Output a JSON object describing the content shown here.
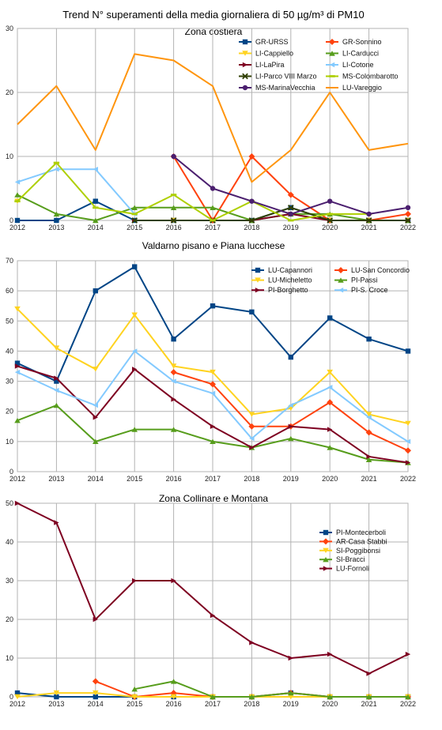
{
  "page": {
    "title": "Trend N° superamenti della media giornaliera di 50 µg/m³ di PM10"
  },
  "chart_data": [
    {
      "type": "line",
      "title": "Zona costiera",
      "xlabel": "",
      "ylabel": "",
      "categories": [
        "2012",
        "2013",
        "2014",
        "2015",
        "2016",
        "2017",
        "2018",
        "2019",
        "2020",
        "2021",
        "2022"
      ],
      "ylim": [
        0,
        30
      ],
      "yticks": [
        0,
        10,
        20,
        30
      ],
      "grid": true,
      "legend_placement": "top-right",
      "legend_columns": 2,
      "series": [
        {
          "name": "GR-URSS",
          "color": "#004586",
          "marker": "square",
          "values": [
            0,
            0,
            3,
            0,
            0,
            0,
            0,
            2,
            0,
            0,
            0
          ]
        },
        {
          "name": "GR-Sonnino",
          "color": "#ff420e",
          "marker": "diamond",
          "values": [
            null,
            null,
            null,
            null,
            10,
            0,
            10,
            4,
            0,
            0,
            1
          ]
        },
        {
          "name": "LI-Cappiello",
          "color": "#ffd320",
          "marker": "triangle-down",
          "values": [
            3,
            null,
            null,
            null,
            0,
            null,
            null,
            null,
            0,
            0,
            0
          ]
        },
        {
          "name": "LI-Carducci",
          "color": "#579d1c",
          "marker": "triangle",
          "values": [
            4,
            1,
            0,
            2,
            2,
            2,
            0,
            1,
            1,
            0,
            0
          ]
        },
        {
          "name": "LI-LaPira",
          "color": "#7e0021",
          "marker": "arrow",
          "values": [
            null,
            null,
            null,
            0,
            0,
            0,
            0,
            1,
            0,
            0,
            0
          ]
        },
        {
          "name": "LI-Cotone",
          "color": "#83caff",
          "marker": "arrow-left",
          "values": [
            6,
            8,
            8,
            1,
            null,
            null,
            null,
            null,
            null,
            null,
            null
          ]
        },
        {
          "name": "LI-Parco VIII Marzo",
          "color": "#314004",
          "marker": "x",
          "values": [
            null,
            null,
            null,
            0,
            0,
            0,
            0,
            2,
            0,
            0,
            0
          ]
        },
        {
          "name": "MS-Colombarotto",
          "color": "#aecf00",
          "marker": "hbar",
          "values": [
            3,
            9,
            2,
            1,
            4,
            0,
            3,
            0,
            1,
            1,
            null
          ]
        },
        {
          "name": "MS-MarinaVecchia",
          "color": "#4b1f6f",
          "marker": "circle",
          "values": [
            null,
            null,
            null,
            null,
            10,
            5,
            3,
            1,
            3,
            1,
            2
          ]
        },
        {
          "name": "LU-Vareggio",
          "color": "#ff950e",
          "marker": "none",
          "values": [
            15,
            21,
            11,
            26,
            25,
            21,
            6,
            11,
            20,
            11,
            12
          ]
        }
      ]
    },
    {
      "type": "line",
      "title": "Valdarno pisano e Piana lucchese",
      "xlabel": "",
      "ylabel": "",
      "categories": [
        "2012",
        "2013",
        "2014",
        "2015",
        "2016",
        "2017",
        "2018",
        "2019",
        "2020",
        "2021",
        "2022"
      ],
      "ylim": [
        0,
        70
      ],
      "yticks": [
        0,
        10,
        20,
        30,
        40,
        50,
        60,
        70
      ],
      "grid": true,
      "legend_placement": "top-right",
      "legend_columns": 2,
      "series": [
        {
          "name": "LU-Capannori",
          "color": "#004586",
          "marker": "square",
          "values": [
            36,
            30,
            60,
            68,
            44,
            55,
            53,
            38,
            51,
            44,
            40
          ]
        },
        {
          "name": "LU-San Concordio",
          "color": "#ff420e",
          "marker": "diamond",
          "values": [
            null,
            null,
            null,
            null,
            33,
            29,
            15,
            15,
            23,
            13,
            7
          ]
        },
        {
          "name": "LU-Micheletto",
          "color": "#ffd320",
          "marker": "triangle-down",
          "values": [
            54,
            41,
            34,
            52,
            35,
            33,
            19,
            21,
            33,
            19,
            16
          ]
        },
        {
          "name": "PI-Passi",
          "color": "#579d1c",
          "marker": "triangle",
          "values": [
            17,
            22,
            10,
            14,
            14,
            10,
            8,
            11,
            8,
            4,
            3
          ]
        },
        {
          "name": "PI-Borghetto",
          "color": "#7e0021",
          "marker": "arrow",
          "values": [
            35,
            31,
            18,
            34,
            24,
            15,
            8,
            15,
            14,
            5,
            3
          ]
        },
        {
          "name": "PI-S. Croce",
          "color": "#83caff",
          "marker": "arrow-left",
          "values": [
            33,
            27,
            22,
            40,
            30,
            26,
            11,
            22,
            28,
            18,
            10
          ]
        }
      ]
    },
    {
      "type": "line",
      "title": "Zona Collinare e Montana",
      "xlabel": "",
      "ylabel": "",
      "categories": [
        "2012",
        "2013",
        "2014",
        "2015",
        "2016",
        "2017",
        "2018",
        "2019",
        "2020",
        "2021",
        "2022"
      ],
      "ylim": [
        0,
        50
      ],
      "yticks": [
        0,
        10,
        20,
        30,
        40,
        50
      ],
      "grid": true,
      "legend_placement": "right",
      "legend_columns": 1,
      "series": [
        {
          "name": "PI-Montecerboli",
          "color": "#004586",
          "marker": "square",
          "values": [
            1,
            0,
            0,
            0,
            0,
            0,
            0,
            1,
            0,
            0,
            0
          ]
        },
        {
          "name": "AR-Casa Stabbi",
          "color": "#ff420e",
          "marker": "diamond",
          "values": [
            null,
            null,
            4,
            0,
            1,
            0,
            0,
            1,
            0,
            0,
            0
          ]
        },
        {
          "name": "SI-Poggibonsi",
          "color": "#ffd320",
          "marker": "triangle-down",
          "values": [
            0,
            1,
            1,
            0,
            0,
            0,
            0,
            0,
            0,
            0,
            0
          ]
        },
        {
          "name": "SI-Bracci",
          "color": "#579d1c",
          "marker": "triangle",
          "values": [
            null,
            null,
            null,
            2,
            4,
            0,
            0,
            1,
            0,
            0,
            0
          ]
        },
        {
          "name": "LU-Fornoli",
          "color": "#7e0021",
          "marker": "arrow",
          "values": [
            50,
            45,
            20,
            30,
            30,
            21,
            14,
            10,
            11,
            6,
            11
          ]
        }
      ]
    }
  ]
}
